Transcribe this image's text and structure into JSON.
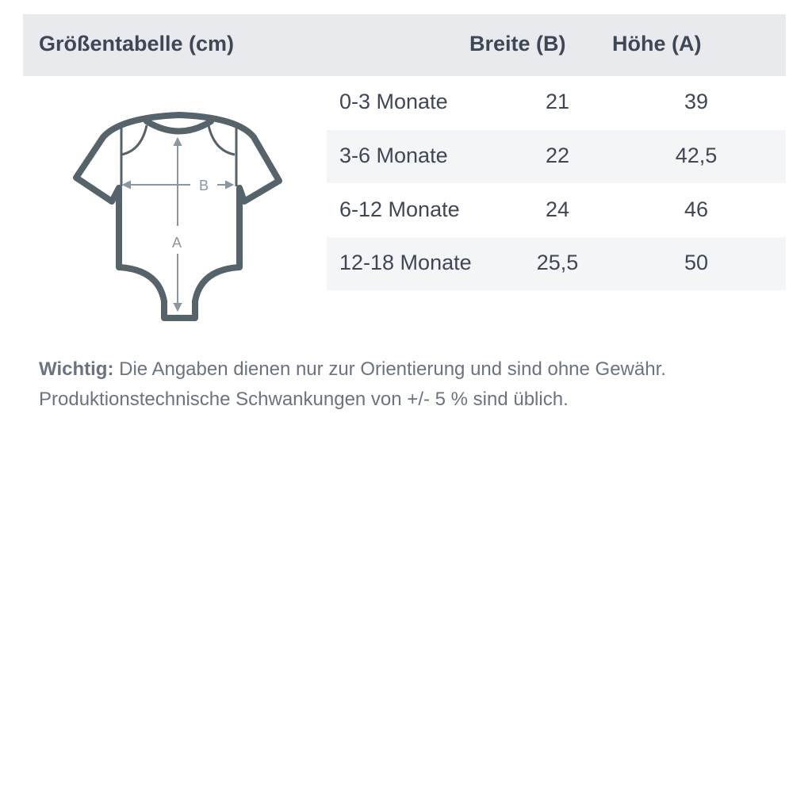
{
  "header": {
    "title": "Größentabelle (cm)",
    "col_width": "Breite (B)",
    "col_height": "Höhe (A)"
  },
  "rows": [
    {
      "size": "0-3 Monate",
      "width": "21",
      "height": "39"
    },
    {
      "size": "3-6 Monate",
      "width": "22",
      "height": "42,5"
    },
    {
      "size": "6-12 Monate",
      "width": "24",
      "height": "46"
    },
    {
      "size": "12-18 Monate",
      "width": "25,5",
      "height": "50"
    }
  ],
  "diagram": {
    "label_b": "B",
    "label_a": "A",
    "outline_color": "#56636b",
    "arrow_color": "#8a96a0"
  },
  "note": {
    "bold": "Wichtig:",
    "line1": " Die Angaben dienen nur zur Orientierung und sind ohne Gewähr.",
    "line2": "Produktionstechnische Schwankungen von +/- 5 % sind üblich."
  }
}
